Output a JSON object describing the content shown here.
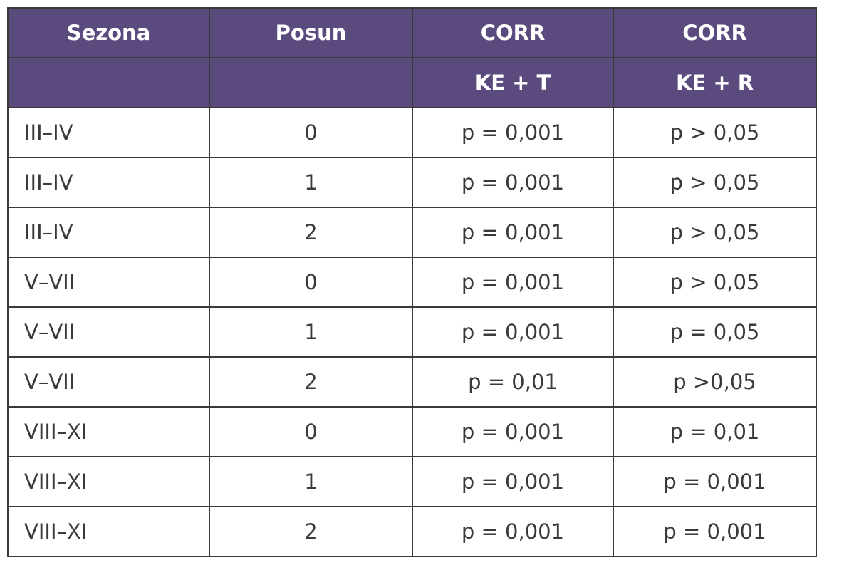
{
  "table": {
    "header": [
      "Sezona",
      "Posun",
      "CORR",
      "CORR"
    ],
    "subheader": [
      null,
      null,
      "KE + T",
      "KE + R"
    ],
    "rows": [
      [
        "III–IV",
        "0",
        "p = 0,001",
        "p > 0,05"
      ],
      [
        "III–IV",
        "1",
        "p = 0,001",
        "p > 0,05"
      ],
      [
        "III–IV",
        "2",
        "p = 0,001",
        "p > 0,05"
      ],
      [
        "V–VII",
        "0",
        "p = 0,001",
        "p > 0,05"
      ],
      [
        "V–VII",
        "1",
        "p = 0,001",
        "p = 0,05"
      ],
      [
        "V–VII",
        "2",
        "p = 0,01",
        "p >0,05"
      ],
      [
        "VIII–XI",
        "0",
        "p = 0,001",
        "p = 0,01"
      ],
      [
        "VIII–XI",
        "1",
        "p = 0,001",
        "p = 0,001"
      ],
      [
        "VIII–XI",
        "2",
        "p = 0,001",
        "p = 0,001"
      ]
    ]
  }
}
